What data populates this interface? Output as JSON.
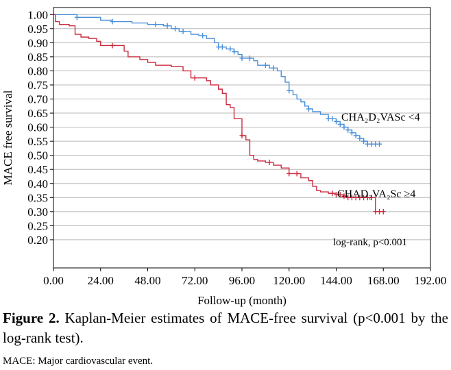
{
  "chart_data": {
    "type": "line",
    "ylabel": "MACE free survival",
    "xlabel": "Follow-up (month)",
    "xlim": [
      0,
      192
    ],
    "ylim": [
      0.2,
      1.0
    ],
    "x_ticks": [
      "0.00",
      "24.00",
      "48.00",
      "72.00",
      "96.00",
      "120.00",
      "144.00",
      "168.00",
      "192.00"
    ],
    "y_ticks": [
      "0.20",
      "0.25",
      "0.30",
      "0.35",
      "0.40",
      "0.45",
      "0.50",
      "0.55",
      "0.60",
      "0.65",
      "0.70",
      "0.75",
      "0.80",
      "0.85",
      "0.90",
      "0.95",
      "1.00"
    ],
    "grid": "horizontal",
    "series": [
      {
        "name": "CHA₂D₂VASc <4",
        "color": "#4a8fd8",
        "points": [
          [
            0,
            1.0
          ],
          [
            12,
            0.99
          ],
          [
            24,
            0.98
          ],
          [
            30,
            0.975
          ],
          [
            40,
            0.97
          ],
          [
            48,
            0.965
          ],
          [
            56,
            0.96
          ],
          [
            60,
            0.95
          ],
          [
            64,
            0.94
          ],
          [
            70,
            0.93
          ],
          [
            74,
            0.925
          ],
          [
            78,
            0.915
          ],
          [
            82,
            0.9
          ],
          [
            84,
            0.885
          ],
          [
            88,
            0.878
          ],
          [
            92,
            0.868
          ],
          [
            94,
            0.858
          ],
          [
            96,
            0.845
          ],
          [
            102,
            0.836
          ],
          [
            104,
            0.82
          ],
          [
            110,
            0.81
          ],
          [
            114,
            0.8
          ],
          [
            116,
            0.78
          ],
          [
            118,
            0.76
          ],
          [
            120,
            0.73
          ],
          [
            122,
            0.715
          ],
          [
            124,
            0.7
          ],
          [
            126,
            0.69
          ],
          [
            128,
            0.675
          ],
          [
            130,
            0.665
          ],
          [
            132,
            0.655
          ],
          [
            136,
            0.645
          ],
          [
            140,
            0.63
          ],
          [
            144,
            0.62
          ],
          [
            146,
            0.61
          ],
          [
            148,
            0.6
          ],
          [
            150,
            0.59
          ],
          [
            152,
            0.58
          ],
          [
            154,
            0.57
          ],
          [
            156,
            0.56
          ],
          [
            158,
            0.55
          ],
          [
            160,
            0.54
          ],
          [
            166,
            0.54
          ]
        ],
        "censor_x": [
          12,
          30,
          52,
          58,
          62,
          66,
          76,
          84,
          86,
          90,
          92,
          96,
          100,
          108,
          112,
          120,
          130,
          140,
          142,
          144,
          146,
          148,
          150,
          152,
          154,
          156,
          158,
          160,
          162,
          164,
          166
        ]
      },
      {
        "name": "CHAD₂VA₂Sc ≥4",
        "color": "#cc2a3e",
        "points": [
          [
            0,
            1.0
          ],
          [
            1,
            0.975
          ],
          [
            3,
            0.965
          ],
          [
            8,
            0.96
          ],
          [
            11,
            0.93
          ],
          [
            14,
            0.92
          ],
          [
            18,
            0.915
          ],
          [
            22,
            0.905
          ],
          [
            24,
            0.89
          ],
          [
            36,
            0.87
          ],
          [
            38,
            0.85
          ],
          [
            44,
            0.84
          ],
          [
            48,
            0.83
          ],
          [
            52,
            0.82
          ],
          [
            60,
            0.815
          ],
          [
            66,
            0.8
          ],
          [
            70,
            0.775
          ],
          [
            78,
            0.765
          ],
          [
            80,
            0.75
          ],
          [
            84,
            0.735
          ],
          [
            86,
            0.72
          ],
          [
            88,
            0.68
          ],
          [
            90,
            0.67
          ],
          [
            92,
            0.63
          ],
          [
            96,
            0.57
          ],
          [
            98,
            0.555
          ],
          [
            100,
            0.5
          ],
          [
            102,
            0.485
          ],
          [
            104,
            0.48
          ],
          [
            108,
            0.475
          ],
          [
            112,
            0.465
          ],
          [
            116,
            0.455
          ],
          [
            120,
            0.435
          ],
          [
            126,
            0.42
          ],
          [
            130,
            0.41
          ],
          [
            132,
            0.39
          ],
          [
            134,
            0.375
          ],
          [
            136,
            0.37
          ],
          [
            140,
            0.365
          ],
          [
            144,
            0.36
          ],
          [
            148,
            0.355
          ],
          [
            150,
            0.35
          ],
          [
            164,
            0.3
          ],
          [
            168,
            0.3
          ]
        ],
        "censor_x": [
          30,
          72,
          96,
          110,
          120,
          124,
          142,
          144,
          146,
          148,
          150,
          152,
          154,
          156,
          158,
          160,
          162,
          164,
          166,
          168
        ]
      }
    ],
    "annotations": [
      {
        "text": "log-rank, p<0.001",
        "x": 166,
        "y": 0.26
      }
    ]
  },
  "caption": {
    "label": "Figure 2.",
    "text": " Kaplan-Meier estimates of MACE-free survival (p<0.001 by the log-rank test)."
  },
  "note": "MACE: Major cardiovascular event."
}
